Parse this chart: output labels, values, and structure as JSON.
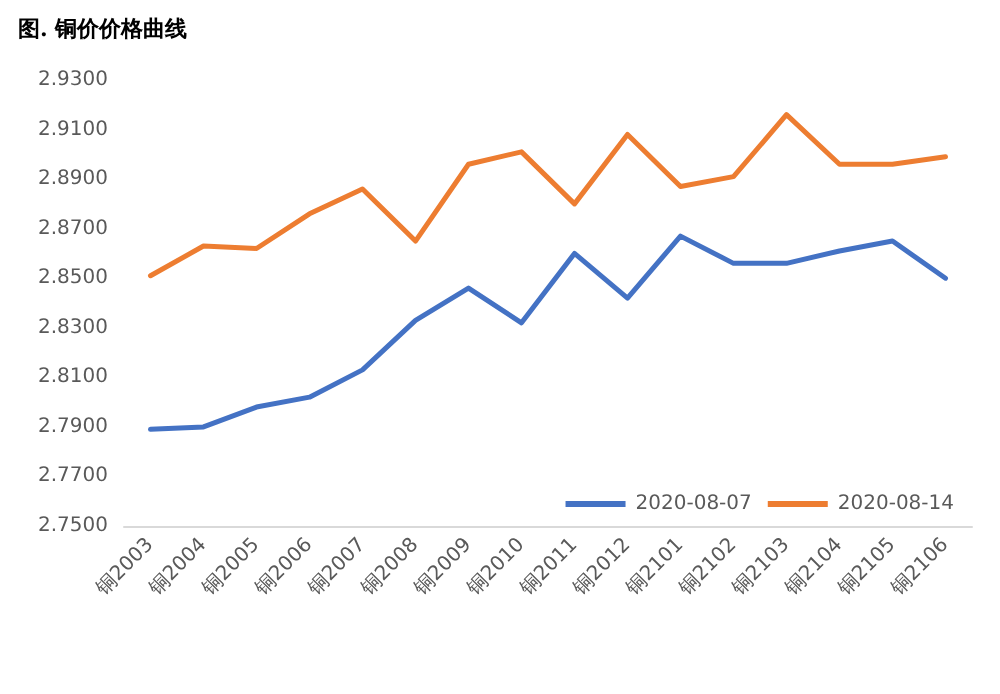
{
  "chart_data": {
    "type": "line",
    "title": "图. 铜价价格曲线",
    "categories": [
      "铜2003",
      "铜2004",
      "铜2005",
      "铜2006",
      "铜2007",
      "铜2008",
      "铜2009",
      "铜2010",
      "铜2011",
      "铜2012",
      "铜2101",
      "铜2102",
      "铜2103",
      "铜2104",
      "铜2105",
      "铜2106"
    ],
    "series": [
      {
        "name": "2020-08-07",
        "color": "#4472c4",
        "values": [
          2.789,
          2.79,
          2.798,
          2.802,
          2.813,
          2.833,
          2.846,
          2.832,
          2.86,
          2.842,
          2.867,
          2.856,
          2.856,
          2.861,
          2.865,
          2.85
        ]
      },
      {
        "name": "2020-08-14",
        "color": "#ed7d31",
        "values": [
          2.851,
          2.863,
          2.862,
          2.876,
          2.886,
          2.865,
          2.896,
          2.901,
          2.88,
          2.908,
          2.887,
          2.891,
          2.916,
          2.896,
          2.896,
          2.899
        ]
      }
    ],
    "ylim": [
      2.75,
      2.93
    ],
    "yticks": [
      {
        "value": 2.75,
        "label": "2.7500"
      },
      {
        "value": 2.77,
        "label": "2.7700"
      },
      {
        "value": 2.79,
        "label": "2.7900"
      },
      {
        "value": 2.81,
        "label": "2.8100"
      },
      {
        "value": 2.83,
        "label": "2.8300"
      },
      {
        "value": 2.85,
        "label": "2.8500"
      },
      {
        "value": 2.87,
        "label": "2.8700"
      },
      {
        "value": 2.89,
        "label": "2.8900"
      },
      {
        "value": 2.91,
        "label": "2.9100"
      },
      {
        "value": 2.93,
        "label": "2.9300"
      }
    ],
    "grid": false,
    "legend": "bottom right",
    "marker": "none",
    "line_style": "solid"
  }
}
